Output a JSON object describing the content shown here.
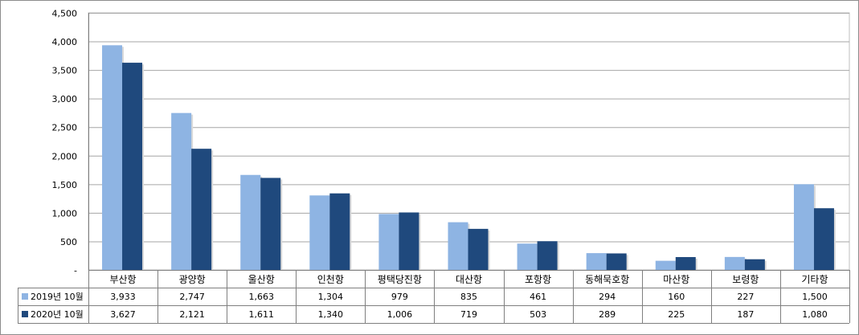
{
  "chart_data": {
    "type": "bar",
    "categories": [
      "부산항",
      "광양항",
      "울산항",
      "인천항",
      "평택당진항",
      "대산항",
      "포항항",
      "동해묵호항",
      "마산항",
      "보령항",
      "기타항"
    ],
    "series": [
      {
        "name": "2019년 10월",
        "color": "#8eb4e3",
        "values": [
          3933,
          2747,
          1663,
          1304,
          979,
          835,
          461,
          294,
          160,
          227,
          1500
        ]
      },
      {
        "name": "2020년 10월",
        "color": "#1f497d",
        "values": [
          3627,
          2121,
          1611,
          1340,
          1006,
          719,
          503,
          289,
          225,
          187,
          1080
        ]
      }
    ],
    "series_labels": [
      [
        "3,933",
        "2,747",
        "1,663",
        "1,304",
        "979",
        "835",
        "461",
        "294",
        "160",
        "227",
        "1,500"
      ],
      [
        "3,627",
        "2,121",
        "1,611",
        "1,340",
        "1,006",
        "719",
        "503",
        "289",
        "225",
        "187",
        "1,080"
      ]
    ],
    "yticks": [
      0,
      500,
      1000,
      1500,
      2000,
      2500,
      3000,
      3500,
      4000,
      4500
    ],
    "ytick_labels": [
      "-",
      "500",
      "1,000",
      "1,500",
      "2,000",
      "2,500",
      "3,000",
      "3,500",
      "4,000",
      "4,500"
    ],
    "ylim": [
      0,
      4500
    ],
    "grid": true,
    "legend": "data-table-left"
  }
}
